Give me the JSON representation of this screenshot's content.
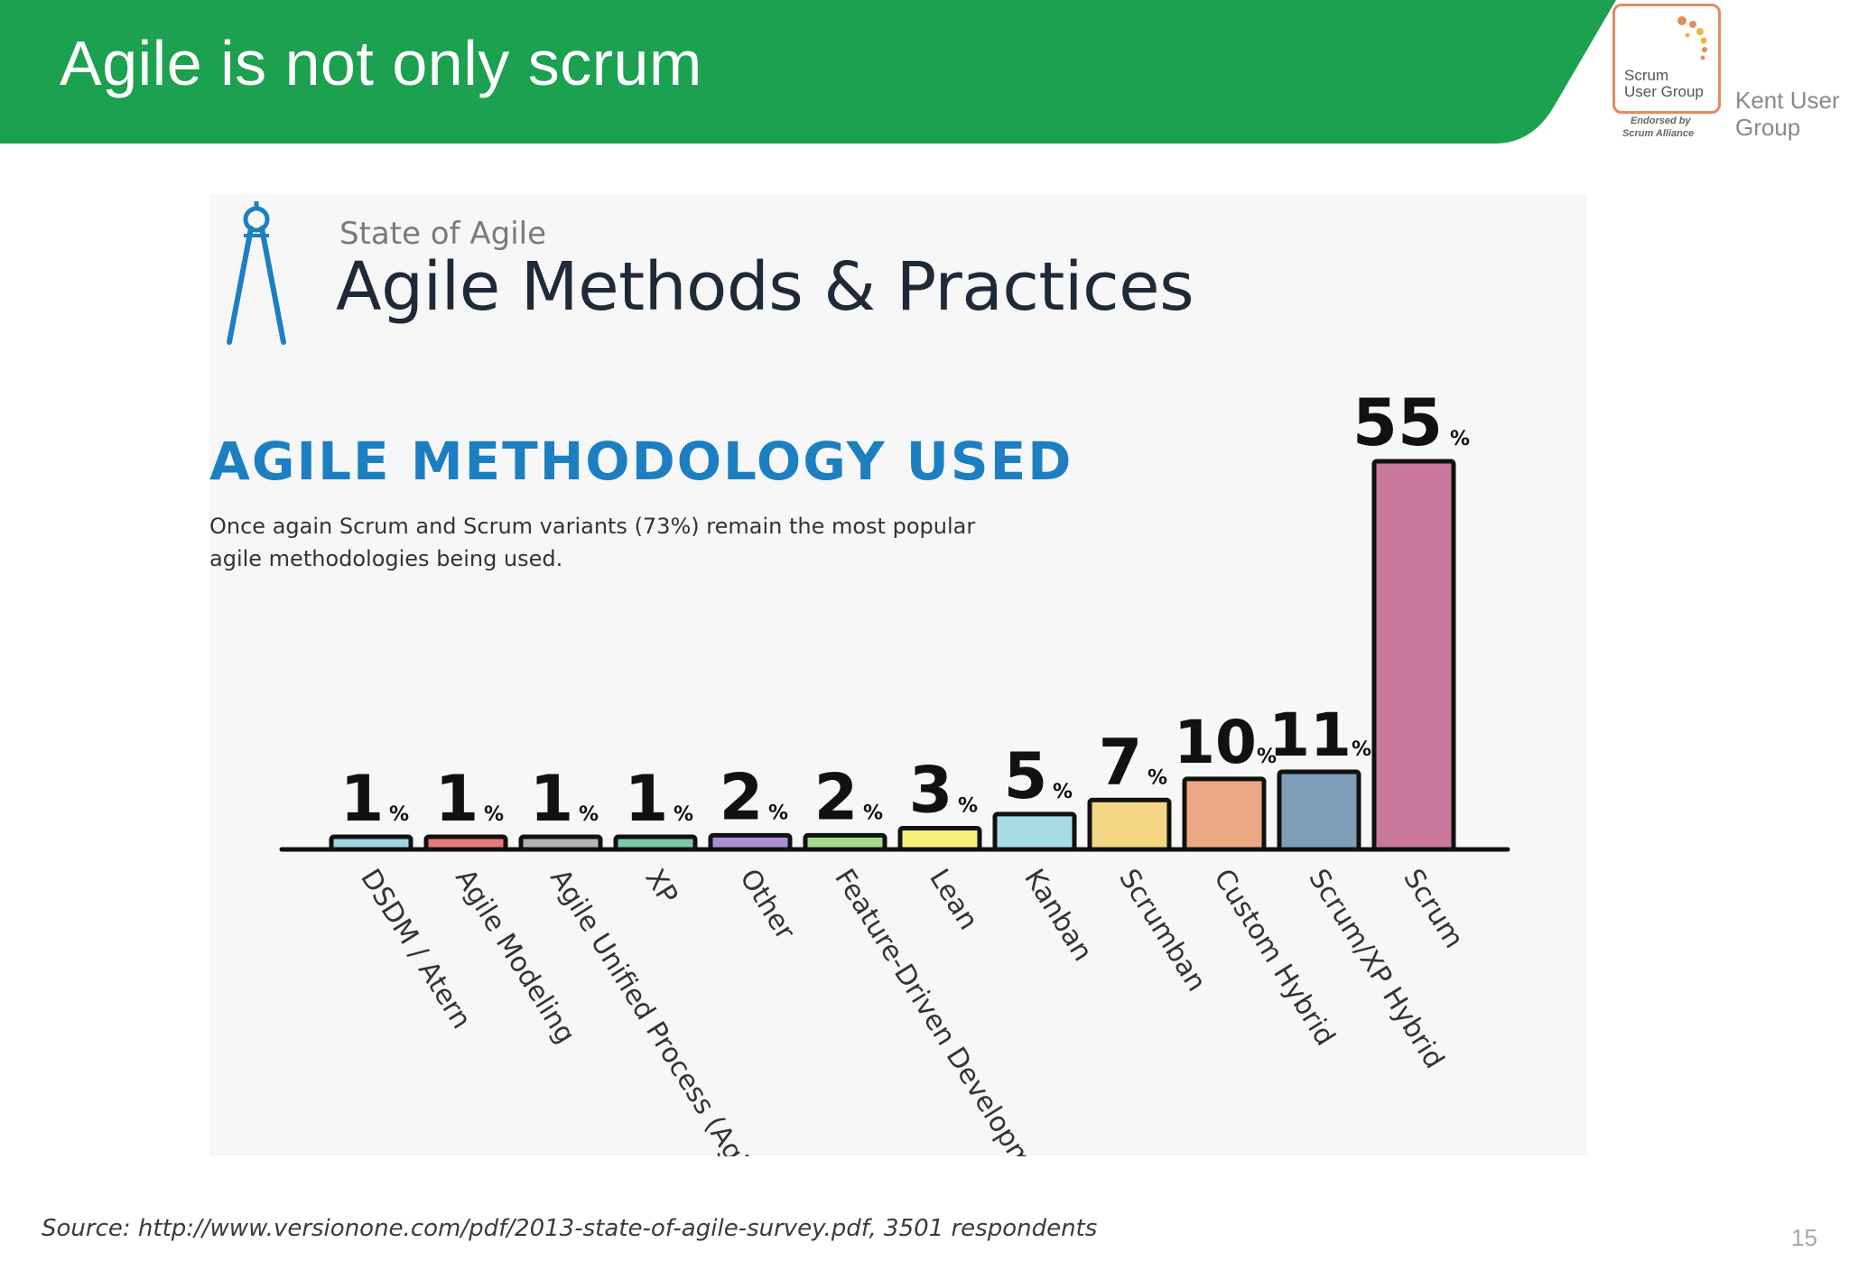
{
  "slide": {
    "title": "Agile is not only scrum",
    "page_number": "15",
    "source": "Source: http://www.versionone.com/pdf/2013-state-of-agile-survey.pdf, 3501 respondents",
    "header_color": "#1ba14f"
  },
  "logo": {
    "line1": "Scrum",
    "line2": "User Group",
    "sub1": "Endorsed by",
    "sub2": "Scrum Alliance",
    "group_name": "Kent User Group",
    "border_color": "#e58a5d",
    "icon": "dotted-arc-icon"
  },
  "infographic": {
    "kicker": "State of Agile",
    "title": "Agile Methods & Practices",
    "heading": "AGILE METHODOLOGY USED",
    "description": "Once again Scrum and Scrum variants (73%) remain the most popular agile methodologies being used.",
    "icon": "compass-icon"
  },
  "chart_data": {
    "type": "bar",
    "title": "AGILE METHODOLOGY USED",
    "xlabel": "",
    "ylabel": "",
    "ylim": [
      0,
      55
    ],
    "grid": false,
    "unit": "%",
    "categories": [
      "DSDM / Atern",
      "Agile Modeling",
      "Agile Unified Process (AgileUP)",
      "XP",
      "Other",
      "Feature-Driven Development",
      "Lean",
      "Kanban",
      "Scrumban",
      "Custom Hybrid",
      "Scrum/XP Hybrid",
      "Scrum"
    ],
    "values": [
      1,
      1,
      1,
      1,
      2,
      2,
      3,
      5,
      7,
      10,
      11,
      55
    ],
    "colors": [
      "#9fd5e0",
      "#e9797a",
      "#b4b4b4",
      "#7ec8a8",
      "#a98fd1",
      "#a5d98a",
      "#f7ee7a",
      "#a6dce6",
      "#f5d685",
      "#eca884",
      "#7e9db8",
      "#c9779b"
    ]
  }
}
